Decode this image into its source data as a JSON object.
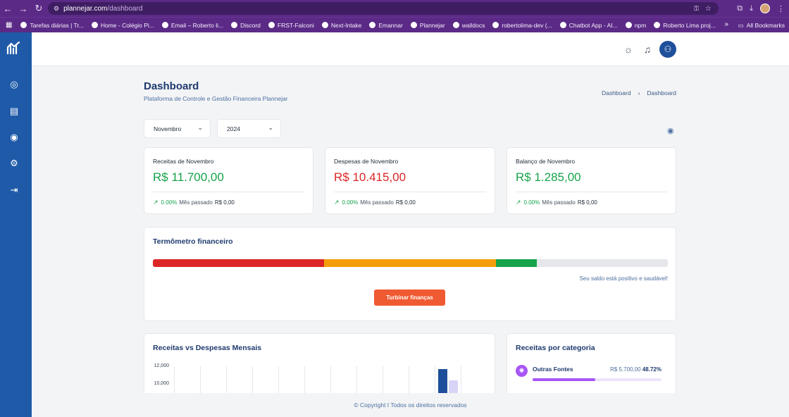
{
  "browser": {
    "url_host": "plannejar.com",
    "url_path": "/dashboard",
    "bookmarks": [
      "Tarefas diárias | Tr...",
      "Home - Colégio Pi...",
      "Email – Roberto li...",
      "Discord",
      "FRST-Falconi",
      "Next-Intake",
      "Emannar",
      "Plannejar",
      "walldocs",
      "robertolima-dev (...",
      "Chatbot App - AI...",
      "npm",
      "Roberto Lima proj..."
    ],
    "all_bookmarks": "All Bookmarks"
  },
  "page": {
    "title": "Dashboard",
    "subtitle": "Plataforma de Controle e Gestão Financeira Plannejar",
    "breadcrumb": [
      "Dashboard",
      "Dashboard"
    ]
  },
  "filters": {
    "month": "Novembro",
    "year": "2024"
  },
  "cards": [
    {
      "label": "Receitas de Novembro",
      "value": "R$ 11.700,00",
      "color": "#16a34a",
      "pct": "0.00%",
      "last_label": "Mês passado",
      "last_value": "R$ 0,00"
    },
    {
      "label": "Despesas de Novembro",
      "value": "R$ 10.415,00",
      "color": "#dc2626",
      "pct": "0.00%",
      "last_label": "Mês passado",
      "last_value": "R$ 0,00"
    },
    {
      "label": "Balanço de Novembro",
      "value": "R$ 1.285,00",
      "color": "#16a34a",
      "pct": "0.00%",
      "last_label": "Mês passado",
      "last_value": "R$ 0,00"
    }
  ],
  "thermometer": {
    "title": "Termômetro financeiro",
    "message": "Seu saldo está positivo e saudável!",
    "button": "Turbinar finanças",
    "segments": [
      {
        "fraction": 0.333,
        "color": "#dc2626"
      },
      {
        "fraction": 0.333,
        "color": "#f59e0b"
      },
      {
        "fraction": 0.08,
        "color": "#16a34a"
      }
    ]
  },
  "monthly_chart": {
    "title": "Receitas vs Despesas Mensais",
    "y_ticks": [
      "12,000",
      "10,000"
    ]
  },
  "chart_data": {
    "type": "bar",
    "title": "Receitas vs Despesas Mensais",
    "ylim": [
      0,
      12000
    ],
    "visible_y_range": [
      9500,
      12000
    ],
    "series": [
      {
        "values": [
          11700
        ],
        "color": "#1e4f9a"
      },
      {
        "values": [
          10415
        ],
        "color": "#d8d4f6"
      }
    ]
  },
  "categories": {
    "title": "Receitas por categoria",
    "items": [
      {
        "name": "Outras Fontes",
        "amount": "R$ 5.700,00",
        "percent": "48.72%",
        "fraction": 0.4872,
        "color": "#a855f7"
      }
    ]
  },
  "footer": "© Copyright I Todos os direitos reservados"
}
